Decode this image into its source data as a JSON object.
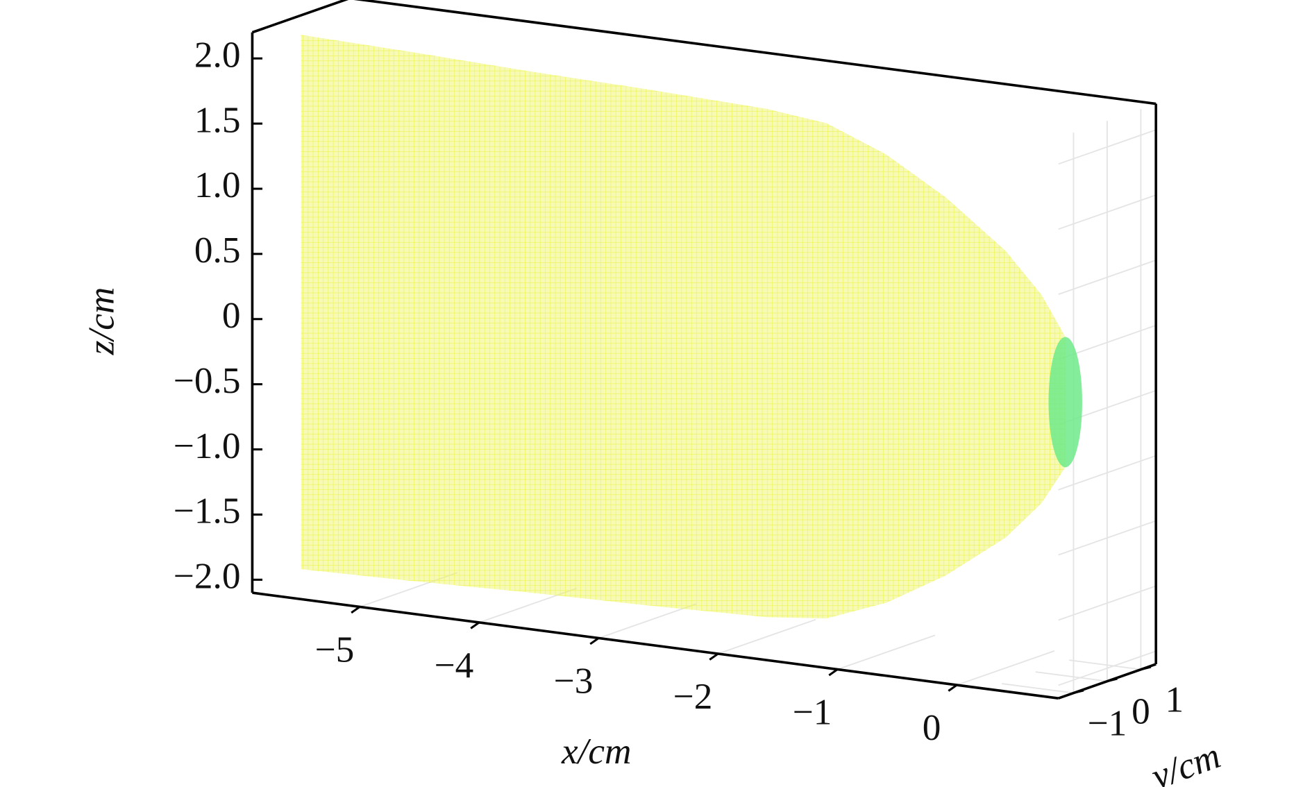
{
  "chart_data": {
    "type": "surface3d",
    "xlabel": "x/cm",
    "ylabel": "y/cm",
    "zlabel": "z/cm",
    "xlim": [
      -5.9,
      0.85
    ],
    "ylim": [
      -1.45,
      1.45
    ],
    "zlim": [
      -2.1,
      2.2
    ],
    "xticks": [
      {
        "value": -5,
        "label": "−5"
      },
      {
        "value": -4,
        "label": "−4"
      },
      {
        "value": -3,
        "label": "−3"
      },
      {
        "value": -2,
        "label": "−2"
      },
      {
        "value": -1,
        "label": "−1"
      },
      0
    ],
    "yticks": [
      {
        "value": -1,
        "label": "−1"
      },
      0,
      1
    ],
    "zticks": [
      {
        "value": 2,
        "label": "2.0"
      },
      1.5,
      {
        "value": 1,
        "label": "1.0"
      },
      0.5,
      0,
      {
        "value": -0.5,
        "label": "−0.5"
      },
      {
        "value": -1,
        "label": "−1.0"
      },
      {
        "value": -1.5,
        "label": "−1.5"
      },
      {
        "value": -2,
        "label": "−2.0"
      }
    ],
    "grid": true,
    "surface": {
      "x": [
        -5.9,
        -5,
        -4,
        -3,
        -2,
        -1.5,
        -1,
        -0.5,
        0,
        0.3,
        0.5
      ],
      "radius": [
        2.05,
        2.03,
        2.0,
        1.98,
        1.95,
        1.9,
        1.72,
        1.45,
        1.1,
        0.8,
        0.5
      ]
    }
  }
}
